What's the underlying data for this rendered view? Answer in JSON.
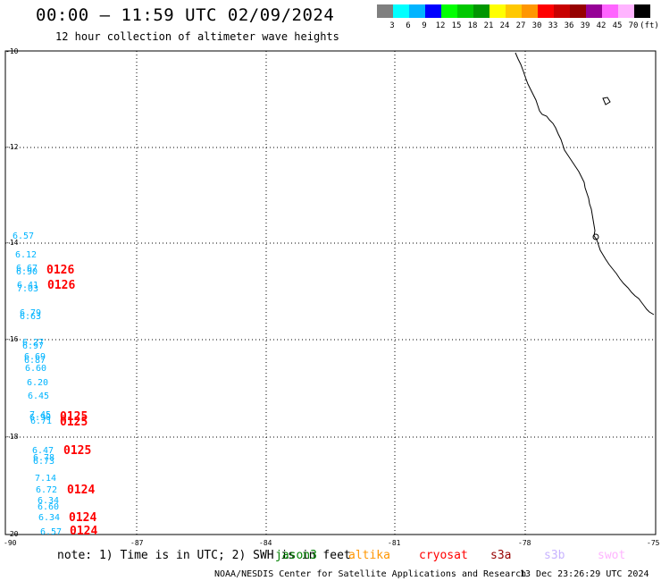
{
  "header": {
    "title": "00:00 – 11:59 UTC 02/09/2024",
    "subtitle": "12 hour collection of altimeter wave heights"
  },
  "legend": {
    "colors": [
      "#7f7f7f",
      "#00ffff",
      "#00b4ff",
      "#0000ff",
      "#00ff00",
      "#00c800",
      "#009600",
      "#ffff00",
      "#ffc800",
      "#ff9600",
      "#ff0000",
      "#c80000",
      "#960000",
      "#960096",
      "#ff64ff",
      "#ffb4ff",
      "#000000"
    ],
    "labels": [
      "3",
      "6",
      "9",
      "12",
      "15",
      "18",
      "21",
      "24",
      "27",
      "30",
      "33",
      "36",
      "39",
      "42",
      "45",
      "70",
      "(ft)"
    ]
  },
  "axes": {
    "y_ticks": [
      "-10",
      "-12",
      "-14",
      "-16",
      "-18",
      "-20"
    ],
    "x_ticks": [
      "-90",
      "-87",
      "-84",
      "-81",
      "-78",
      "-75"
    ]
  },
  "observations": [
    {
      "text": "6.57",
      "color": "#00b4ff"
    },
    {
      "text": "6.12",
      "color": "#00b4ff"
    },
    {
      "text": "6.67",
      "color": "#00b4ff"
    },
    {
      "text": "6.90",
      "color": "#00b4ff"
    },
    {
      "text": "6.41",
      "color": "#00b4ff"
    },
    {
      "text": "7.03",
      "color": "#00b4ff"
    },
    {
      "text": "6.79",
      "color": "#00b4ff"
    },
    {
      "text": "6.63",
      "color": "#00b4ff"
    },
    {
      "text": "6.27",
      "color": "#00b4ff"
    },
    {
      "text": "6.97",
      "color": "#00b4ff"
    },
    {
      "text": "6.69",
      "color": "#00b4ff"
    },
    {
      "text": "6.87",
      "color": "#00b4ff"
    },
    {
      "text": "6.60",
      "color": "#00b4ff"
    },
    {
      "text": "6.20",
      "color": "#00b4ff"
    },
    {
      "text": "6.45",
      "color": "#00b4ff"
    },
    {
      "text": "7.45",
      "color": "#00b4ff"
    },
    {
      "text": "6.90",
      "color": "#00b4ff"
    },
    {
      "text": "6.71",
      "color": "#00b4ff"
    },
    {
      "text": "6.47",
      "color": "#00b4ff"
    },
    {
      "text": "6.78",
      "color": "#00b4ff"
    },
    {
      "text": "6.73",
      "color": "#00b4ff"
    },
    {
      "text": "7.14",
      "color": "#00b4ff"
    },
    {
      "text": "6.72",
      "color": "#00b4ff"
    },
    {
      "text": "6.34",
      "color": "#00b4ff"
    },
    {
      "text": "6.60",
      "color": "#00b4ff"
    },
    {
      "text": "6.34",
      "color": "#00b4ff"
    },
    {
      "text": "6.57",
      "color": "#00b4ff"
    }
  ],
  "time_labels": [
    "0126",
    "0126",
    "0125",
    "0125",
    "0125",
    "0124",
    "0124",
    "0124"
  ],
  "footer": {
    "note": "note: 1) Time is in UTC; 2) SWH is in feet",
    "satellites": [
      {
        "name": "jason3",
        "color": "#008000"
      },
      {
        "name": "altika",
        "color": "#ff9600"
      },
      {
        "name": "cryosat",
        "color": "#ff0000"
      },
      {
        "name": "s3a",
        "color": "#960000"
      },
      {
        "name": "s3b",
        "color": "#c8b4ff"
      },
      {
        "name": "swot",
        "color": "#ffb4ff"
      }
    ],
    "credit": "NOAA/NESDIS Center for Satellite Applications and Research",
    "timestamp": "13 Dec 23:26:29 UTC 2024"
  }
}
